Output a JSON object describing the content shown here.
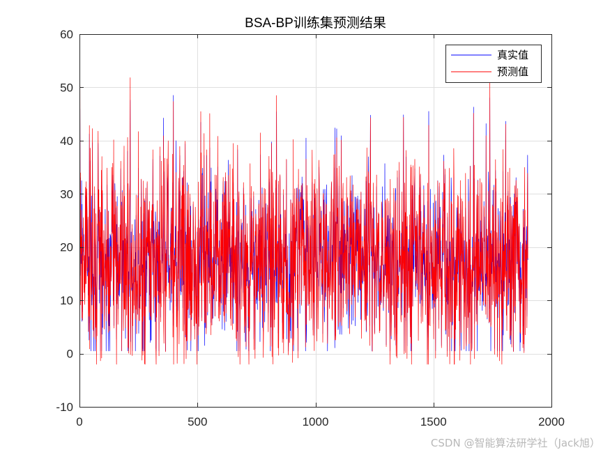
{
  "chart_data": {
    "type": "line",
    "title": "BSA-BP训练集预测结果",
    "xlabel": "",
    "ylabel": "",
    "xlim": [
      0,
      2000
    ],
    "ylim": [
      -10,
      60
    ],
    "xticks": [
      0,
      500,
      1000,
      1500,
      2000
    ],
    "yticks": [
      -10,
      0,
      10,
      20,
      30,
      40,
      50,
      60
    ],
    "xtick_labels": [
      "0",
      "500",
      "1000",
      "1500",
      "2000"
    ],
    "ytick_labels": [
      "-10",
      "0",
      "10",
      "20",
      "30",
      "40",
      "50",
      "60"
    ],
    "grid": true,
    "legend_position": "top-right",
    "n_points": 1900,
    "series": [
      {
        "name": "真实值",
        "color": "#0000ff",
        "mean": 17,
        "std": 8.5,
        "min": 0.5,
        "max": 48.5
      },
      {
        "name": "预测值",
        "color": "#ff0000",
        "mean": 17,
        "std": 8.8,
        "min": -2,
        "max": 54
      }
    ]
  },
  "watermark": "CSDN @智能算法研学社（Jack旭）"
}
